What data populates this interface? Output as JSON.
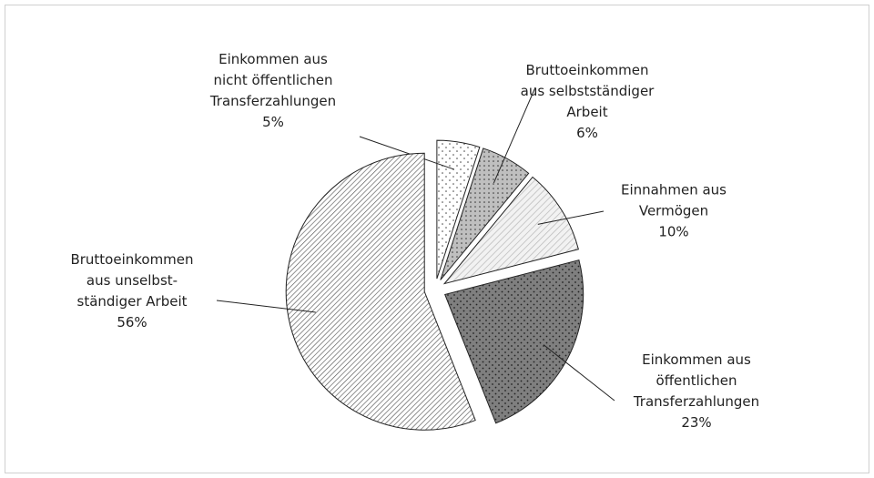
{
  "chart_data": {
    "type": "pie",
    "categories": [
      "Einkommen aus\nnicht öffentlichen\nTransferzahlungen",
      "Bruttoeinkommen\naus selbstständiger\nArbeit",
      "Einnahmen aus\nVermögen",
      "Einkommen aus\nöffentlichen\nTransferzahlungen",
      "Bruttoeinkommen\naus unselbst-\nständiger Arbeit"
    ],
    "values": [
      5,
      6,
      10,
      23,
      56
    ],
    "value_labels": [
      "5%",
      "6%",
      "10%",
      "23%",
      "56%"
    ],
    "colors": [
      "#ffffff",
      "#bfbfbf",
      "#f2f2f2",
      "#7f7f7f",
      "#ffffff"
    ]
  }
}
